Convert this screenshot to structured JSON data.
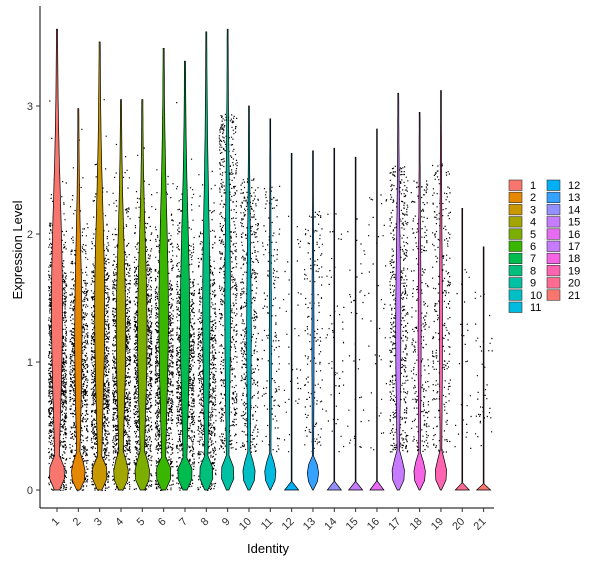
{
  "chart_data": {
    "type": "violin",
    "xlabel": "Identity",
    "ylabel": "Expression Level",
    "ylim": [
      -0.15,
      3.7
    ],
    "yticks": [
      0,
      1,
      2,
      3
    ],
    "grid": false,
    "legend_position": "right",
    "categories": [
      "1",
      "2",
      "3",
      "4",
      "5",
      "6",
      "7",
      "8",
      "9",
      "10",
      "11",
      "12",
      "13",
      "14",
      "15",
      "16",
      "17",
      "18",
      "19",
      "20",
      "21"
    ],
    "colors": [
      "#F8766D",
      "#E58700",
      "#C99800",
      "#A3A500",
      "#6BB100",
      "#00BA38",
      "#00BF7D",
      "#00C0AF",
      "#00BCD8",
      "#00B0F6",
      "#619CFF",
      "#B983FF",
      "#E76BF3",
      "#FD61D1",
      "#FF67A4",
      "#F8766D",
      "#E58700",
      "#C99800",
      "#A3A500",
      "#6BB100",
      "#00BA38"
    ],
    "series": [
      {
        "name": "1",
        "color": "#F8766D",
        "max": 3.6,
        "density": 0.95
      },
      {
        "name": "2",
        "color": "#E58700",
        "max": 2.98,
        "density": 0.6
      },
      {
        "name": "3",
        "color": "#C99800",
        "max": 3.5,
        "density": 0.85
      },
      {
        "name": "4",
        "color": "#A3A500",
        "max": 3.05,
        "density": 0.8
      },
      {
        "name": "5",
        "color": "#7CAE00",
        "max": 3.05,
        "density": 0.8
      },
      {
        "name": "6",
        "color": "#39B600",
        "max": 3.45,
        "density": 0.8
      },
      {
        "name": "7",
        "color": "#00BB4E",
        "max": 3.35,
        "density": 0.78
      },
      {
        "name": "8",
        "color": "#00BF7D",
        "max": 3.58,
        "density": 0.6
      },
      {
        "name": "9",
        "color": "#00C1A3",
        "max": 3.6,
        "density": 0.45
      },
      {
        "name": "10",
        "color": "#00BFC4",
        "max": 3.0,
        "density": 0.35
      },
      {
        "name": "11",
        "color": "#00BAE0",
        "max": 2.9,
        "density": 0.12
      },
      {
        "name": "12",
        "color": "#00B0F6",
        "max": 2.63,
        "density": 0.03
      },
      {
        "name": "13",
        "color": "#35A2FF",
        "max": 2.65,
        "density": 0.12
      },
      {
        "name": "14",
        "color": "#9590FF",
        "max": 2.67,
        "density": 0.04
      },
      {
        "name": "15",
        "color": "#C77CFF",
        "max": 2.6,
        "density": 0.03
      },
      {
        "name": "16",
        "color": "#E76BF3",
        "max": 2.82,
        "density": 0.03
      },
      {
        "name": "17",
        "color": "#C77CFF",
        "max": 3.1,
        "density": 0.4
      },
      {
        "name": "18",
        "color": "#F564E3",
        "max": 2.95,
        "density": 0.2
      },
      {
        "name": "19",
        "color": "#FF64B0",
        "max": 3.12,
        "density": 0.2
      },
      {
        "name": "20",
        "color": "#FF6C91",
        "max": 2.2,
        "density": 0.02
      },
      {
        "name": "21",
        "color": "#F8766D",
        "max": 1.9,
        "density": 0.03
      }
    ]
  }
}
